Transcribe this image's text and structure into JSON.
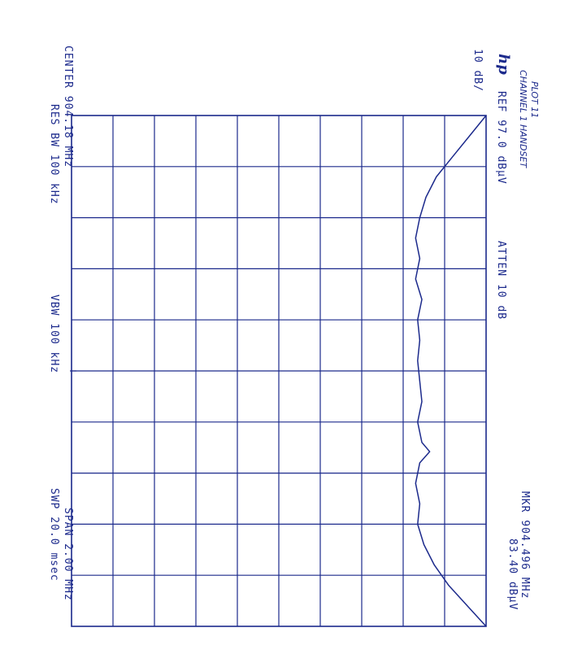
{
  "handwritten": {
    "line1": "PLOT 11",
    "line2": "CHANNEL 1 HANDSET"
  },
  "logo": "hp",
  "header": {
    "ref": "REF  97.0 dBµV",
    "atten": "ATTEN 10 dB",
    "scale": "10 dB/",
    "marker_freq": "MKR 904.496 MHz",
    "marker_level": "83.40 dBµV"
  },
  "footer": {
    "center": "CENTER 904.18 MHz",
    "res_bw": "RES BW 100 kHz",
    "vbw": "VBW 100 kHz",
    "span": "SPAN 2.00 MHz",
    "sweep": "SWP 20.0 msec"
  },
  "chart_data": {
    "type": "line",
    "x_unit": "MHz",
    "y_unit": "dBµV",
    "xlim": [
      903.18,
      905.18
    ],
    "ylim": [
      -3.0,
      97.0
    ],
    "y_per_division": 10,
    "grid": true,
    "colors": {
      "ink": "#1c2a8c",
      "paper": "#ffffff"
    },
    "x": [
      903.18,
      903.26,
      903.34,
      903.42,
      903.5,
      903.58,
      903.66,
      903.74,
      903.82,
      903.9,
      903.98,
      904.06,
      904.14,
      904.22,
      904.3,
      904.38,
      904.46,
      904.496,
      904.54,
      904.62,
      904.7,
      904.78,
      904.86,
      904.94,
      905.02,
      905.1,
      905.18
    ],
    "y": [
      97.0,
      93.0,
      89.0,
      85.0,
      82.5,
      81.0,
      80.0,
      81.0,
      80.0,
      81.5,
      80.5,
      81.0,
      80.5,
      81.0,
      81.5,
      80.5,
      81.5,
      83.4,
      81.0,
      80.0,
      81.0,
      80.5,
      82.0,
      84.5,
      88.0,
      92.5,
      97.0
    ]
  }
}
